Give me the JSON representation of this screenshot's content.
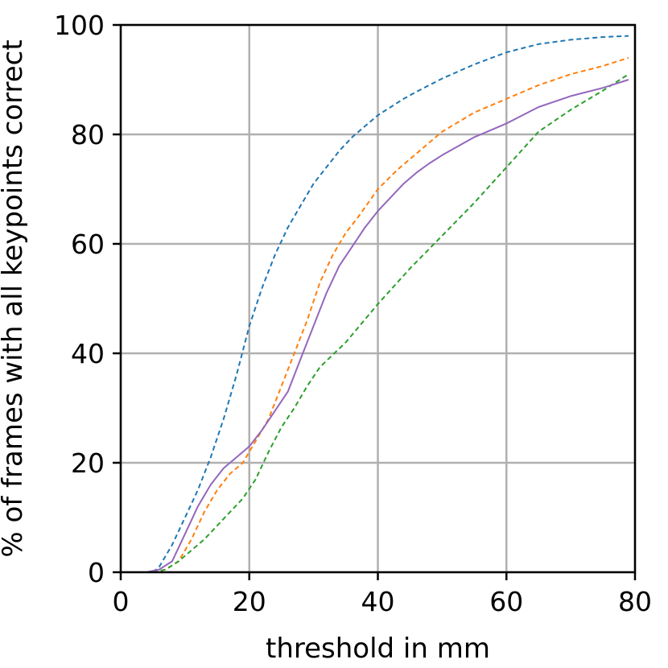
{
  "chart_data": {
    "type": "line",
    "xlabel": "threshold in mm",
    "ylabel": "% of frames with all keypoints correct",
    "xlim": [
      0,
      80
    ],
    "ylim": [
      0,
      100
    ],
    "x_ticks": [
      "0",
      "20",
      "40",
      "60",
      "80"
    ],
    "y_ticks": [
      "0",
      "20",
      "40",
      "60",
      "80",
      "100"
    ],
    "grid": true,
    "legend": "none",
    "series": [
      {
        "color": "#1f77b4",
        "style": "dashed",
        "x": [
          5,
          6,
          8,
          10,
          12,
          14,
          16,
          18,
          20,
          22,
          24,
          26,
          28,
          30,
          32,
          34,
          36,
          38,
          40,
          42,
          44,
          46,
          48,
          50,
          55,
          60,
          65,
          70,
          75,
          79
        ],
        "y": [
          0,
          1,
          5,
          10,
          15,
          21,
          28,
          36,
          45,
          52,
          58,
          63,
          67,
          71,
          74,
          77,
          79.5,
          81.5,
          83.5,
          85,
          86.5,
          87.8,
          89,
          90.2,
          92.8,
          95,
          96.5,
          97.3,
          97.8,
          98
        ]
      },
      {
        "color": "#ff7f0e",
        "style": "dashed",
        "x": [
          5,
          7,
          9,
          11,
          13,
          15,
          17,
          19,
          21,
          23,
          25,
          27,
          29,
          31,
          33,
          35,
          37,
          40,
          43,
          46,
          50,
          55,
          60,
          65,
          70,
          75,
          79
        ],
        "y": [
          0,
          0.5,
          2,
          6,
          11,
          15,
          18,
          20,
          24,
          28,
          34,
          40,
          46,
          53,
          58,
          62,
          65,
          70,
          73.5,
          76.5,
          80.5,
          84,
          86.5,
          89,
          91,
          92.5,
          94
        ]
      },
      {
        "color": "#2ca02c",
        "style": "dashed",
        "x": [
          5,
          7,
          9,
          11,
          13,
          15,
          17,
          19,
          21,
          23,
          25,
          27,
          29,
          31,
          35,
          40,
          45,
          50,
          55,
          60,
          65,
          70,
          75,
          79
        ],
        "y": [
          0,
          0.5,
          2,
          4,
          6,
          8.5,
          11,
          13.5,
          17,
          22,
          26.5,
          30,
          34,
          37.5,
          42,
          49,
          55.5,
          61.5,
          67.5,
          74,
          80.5,
          84.5,
          88,
          91
        ]
      },
      {
        "color": "#9467bd",
        "style": "solid",
        "x": [
          4,
          6,
          8,
          10,
          12,
          14,
          16,
          18,
          20,
          22,
          24,
          26,
          28,
          30,
          32,
          34,
          36,
          38,
          40,
          42,
          44,
          46,
          48,
          50,
          55,
          60,
          65,
          70,
          75,
          79
        ],
        "y": [
          0,
          0.5,
          2,
          7,
          12,
          16,
          19,
          21,
          23,
          26,
          29.5,
          33,
          39,
          45,
          51,
          56,
          59.5,
          63,
          66,
          68.5,
          71,
          73,
          74.7,
          76.2,
          79.5,
          82,
          85,
          87,
          88.5,
          90
        ]
      }
    ]
  }
}
